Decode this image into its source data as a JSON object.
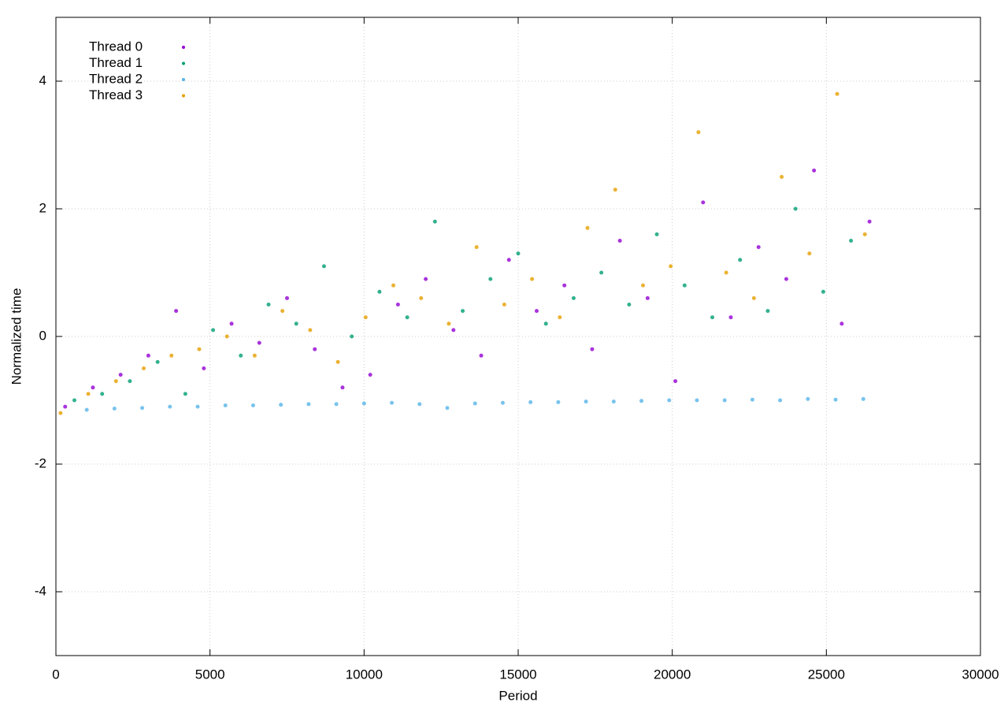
{
  "chart_data": {
    "type": "scatter",
    "x_label": "Period",
    "y_label": "Normalized time",
    "xlim": [
      0,
      30000
    ],
    "xticks": [
      0,
      5000,
      10000,
      15000,
      20000,
      25000,
      30000
    ],
    "ylim": [
      -5,
      5
    ],
    "yticks": [
      -4,
      -2,
      0,
      2,
      4
    ],
    "grid": true,
    "legend": "top-left",
    "series": [
      {
        "name": "Thread 0",
        "color": "#9400d3",
        "x": [
          300,
          1200,
          2100,
          3000,
          3900,
          4800,
          5700,
          6600,
          7500,
          8400,
          9300,
          10200,
          11100,
          12000,
          12900,
          13800,
          14700,
          15600,
          16500,
          17400,
          18300,
          19200,
          20100,
          21000,
          21900,
          22800,
          23700,
          24600,
          25500,
          26400
        ],
        "values": [
          -1.1,
          -0.8,
          -0.6,
          -0.3,
          0.4,
          -0.5,
          0.2,
          -0.1,
          0.6,
          -0.2,
          -0.8,
          -0.6,
          0.5,
          0.9,
          0.1,
          -0.3,
          1.2,
          0.4,
          0.8,
          -0.2,
          1.5,
          0.6,
          -0.7,
          2.1,
          0.3,
          1.4,
          0.9,
          2.6,
          0.2,
          1.8
        ]
      },
      {
        "name": "Thread 1",
        "color": "#009e73",
        "x": [
          600,
          1500,
          2400,
          3300,
          4200,
          5100,
          6000,
          6900,
          7800,
          8700,
          9600,
          10500,
          11400,
          12300,
          13200,
          14100,
          15000,
          15900,
          16800,
          17700,
          18600,
          19500,
          20400,
          21300,
          22200,
          23100,
          24000,
          24900,
          25800
        ],
        "values": [
          -1.0,
          -0.9,
          -0.7,
          -0.4,
          -0.9,
          0.1,
          -0.3,
          0.5,
          0.2,
          1.1,
          0.0,
          0.7,
          0.3,
          1.8,
          0.4,
          0.9,
          1.3,
          0.2,
          0.6,
          1.0,
          0.5,
          1.6,
          0.8,
          0.3,
          1.2,
          0.4,
          2.0,
          0.7,
          1.5
        ]
      },
      {
        "name": "Thread 2",
        "color": "#56b4e9",
        "x": [
          1000,
          1900,
          2800,
          3700,
          4600,
          5500,
          6400,
          7300,
          8200,
          9100,
          10000,
          10900,
          11800,
          12700,
          13600,
          14500,
          15400,
          16300,
          17200,
          18100,
          19000,
          19900,
          20800,
          21700,
          22600,
          23500,
          24400,
          25300,
          26200
        ],
        "values": [
          -1.15,
          -1.13,
          -1.12,
          -1.1,
          -1.1,
          -1.08,
          -1.08,
          -1.07,
          -1.06,
          -1.06,
          -1.05,
          -1.04,
          -1.06,
          -1.12,
          -1.05,
          -1.04,
          -1.03,
          -1.03,
          -1.02,
          -1.02,
          -1.01,
          -1.0,
          -1.0,
          -1.0,
          -0.99,
          -1.0,
          -0.98,
          -0.99,
          -0.98
        ]
      },
      {
        "name": "Thread 3",
        "color": "#e69f00",
        "x": [
          150,
          1050,
          1950,
          2850,
          3750,
          4650,
          5550,
          6450,
          7350,
          8250,
          9150,
          10050,
          10950,
          11850,
          12750,
          13650,
          14550,
          15450,
          16350,
          17250,
          18150,
          19050,
          19950,
          20850,
          21750,
          22650,
          23550,
          24450,
          25350,
          26250
        ],
        "values": [
          -1.2,
          -0.9,
          -0.7,
          -0.5,
          -0.3,
          -0.2,
          0.0,
          -0.3,
          0.4,
          0.1,
          -0.4,
          0.3,
          0.8,
          0.6,
          0.2,
          1.4,
          0.5,
          0.9,
          0.3,
          1.7,
          2.3,
          0.8,
          1.1,
          3.2,
          1.0,
          0.6,
          2.5,
          1.3,
          3.8,
          1.6
        ]
      }
    ]
  }
}
